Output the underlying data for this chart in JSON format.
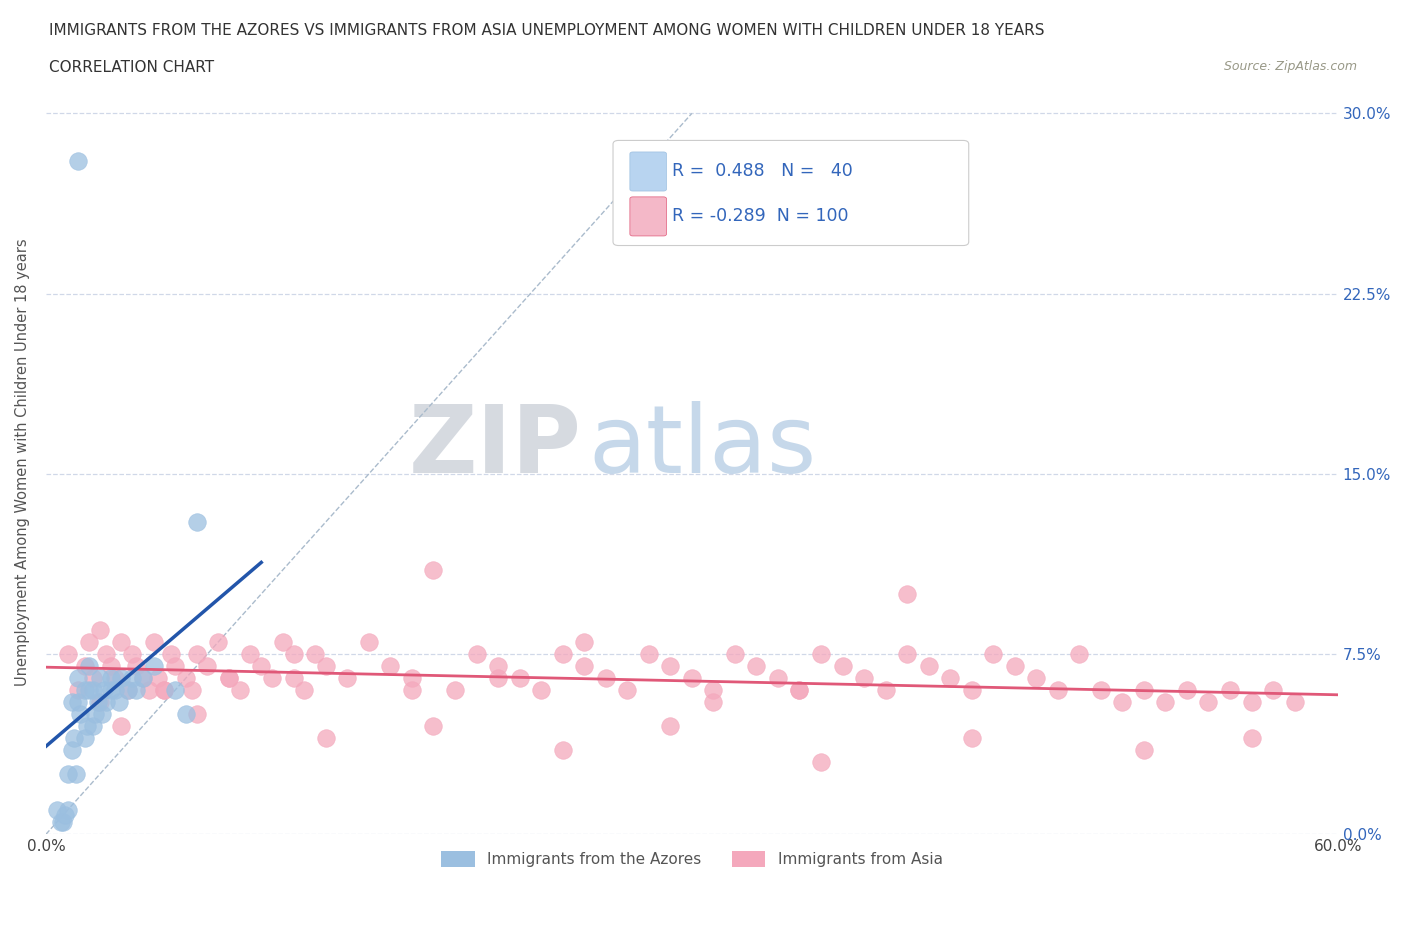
{
  "title_line1": "IMMIGRANTS FROM THE AZORES VS IMMIGRANTS FROM ASIA UNEMPLOYMENT AMONG WOMEN WITH CHILDREN UNDER 18 YEARS",
  "title_line2": "CORRELATION CHART",
  "source": "Source: ZipAtlas.com",
  "ylabel": "Unemployment Among Women with Children Under 18 years",
  "xlim": [
    0.0,
    0.6
  ],
  "ylim": [
    0.0,
    0.31
  ],
  "ytick_labels": [
    "0.0%",
    "7.5%",
    "15.0%",
    "22.5%",
    "30.0%"
  ],
  "ytick_values": [
    0.0,
    0.075,
    0.15,
    0.225,
    0.3
  ],
  "xtick_values": [
    0.0,
    0.1,
    0.2,
    0.3,
    0.4,
    0.5,
    0.6
  ],
  "legend_label1": "Immigrants from the Azores",
  "legend_label2": "Immigrants from Asia",
  "R1": "0.488",
  "N1": "40",
  "R2": "-0.289",
  "N2": "100",
  "color_azores": "#9bbfe0",
  "color_asia": "#f4a8bc",
  "color_line_azores": "#2255aa",
  "color_line_asia": "#e05878",
  "watermark_zip": "ZIP",
  "watermark_atlas": "atlas",
  "color_watermark_zip": "#c8cdd4",
  "color_watermark_atlas": "#b8cce0",
  "azores_x": [
    0.005,
    0.007,
    0.008,
    0.009,
    0.01,
    0.01,
    0.012,
    0.012,
    0.013,
    0.014,
    0.015,
    0.015,
    0.016,
    0.018,
    0.018,
    0.019,
    0.02,
    0.02,
    0.022,
    0.022,
    0.023,
    0.024,
    0.025,
    0.026,
    0.027,
    0.028,
    0.03,
    0.03,
    0.032,
    0.034,
    0.035,
    0.038,
    0.04,
    0.042,
    0.045,
    0.05,
    0.06,
    0.065,
    0.07,
    0.015
  ],
  "azores_y": [
    0.01,
    0.005,
    0.005,
    0.008,
    0.01,
    0.025,
    0.035,
    0.055,
    0.04,
    0.025,
    0.055,
    0.065,
    0.05,
    0.06,
    0.04,
    0.045,
    0.06,
    0.07,
    0.06,
    0.045,
    0.05,
    0.055,
    0.065,
    0.05,
    0.06,
    0.055,
    0.06,
    0.065,
    0.06,
    0.055,
    0.065,
    0.06,
    0.065,
    0.06,
    0.065,
    0.07,
    0.06,
    0.05,
    0.13,
    0.28
  ],
  "asia_x": [
    0.01,
    0.015,
    0.018,
    0.02,
    0.022,
    0.025,
    0.028,
    0.03,
    0.032,
    0.035,
    0.038,
    0.04,
    0.042,
    0.045,
    0.048,
    0.05,
    0.052,
    0.055,
    0.058,
    0.06,
    0.065,
    0.068,
    0.07,
    0.075,
    0.08,
    0.085,
    0.09,
    0.095,
    0.1,
    0.105,
    0.11,
    0.115,
    0.12,
    0.125,
    0.13,
    0.14,
    0.15,
    0.16,
    0.17,
    0.18,
    0.19,
    0.2,
    0.21,
    0.22,
    0.23,
    0.24,
    0.25,
    0.26,
    0.27,
    0.28,
    0.29,
    0.3,
    0.31,
    0.32,
    0.33,
    0.34,
    0.35,
    0.36,
    0.37,
    0.38,
    0.39,
    0.4,
    0.41,
    0.42,
    0.43,
    0.44,
    0.45,
    0.46,
    0.47,
    0.48,
    0.49,
    0.5,
    0.51,
    0.52,
    0.53,
    0.54,
    0.55,
    0.56,
    0.57,
    0.58,
    0.025,
    0.055,
    0.085,
    0.115,
    0.17,
    0.21,
    0.25,
    0.31,
    0.35,
    0.4,
    0.035,
    0.07,
    0.13,
    0.18,
    0.24,
    0.29,
    0.36,
    0.43,
    0.51,
    0.56
  ],
  "asia_y": [
    0.075,
    0.06,
    0.07,
    0.08,
    0.065,
    0.055,
    0.075,
    0.07,
    0.065,
    0.08,
    0.06,
    0.075,
    0.07,
    0.065,
    0.06,
    0.08,
    0.065,
    0.06,
    0.075,
    0.07,
    0.065,
    0.06,
    0.075,
    0.07,
    0.08,
    0.065,
    0.06,
    0.075,
    0.07,
    0.065,
    0.08,
    0.065,
    0.06,
    0.075,
    0.07,
    0.065,
    0.08,
    0.07,
    0.065,
    0.11,
    0.06,
    0.075,
    0.07,
    0.065,
    0.06,
    0.075,
    0.08,
    0.065,
    0.06,
    0.075,
    0.07,
    0.065,
    0.06,
    0.075,
    0.07,
    0.065,
    0.06,
    0.075,
    0.07,
    0.065,
    0.06,
    0.075,
    0.07,
    0.065,
    0.06,
    0.075,
    0.07,
    0.065,
    0.06,
    0.075,
    0.06,
    0.055,
    0.06,
    0.055,
    0.06,
    0.055,
    0.06,
    0.055,
    0.06,
    0.055,
    0.085,
    0.06,
    0.065,
    0.075,
    0.06,
    0.065,
    0.07,
    0.055,
    0.06,
    0.1,
    0.045,
    0.05,
    0.04,
    0.045,
    0.035,
    0.045,
    0.03,
    0.04,
    0.035,
    0.04
  ]
}
